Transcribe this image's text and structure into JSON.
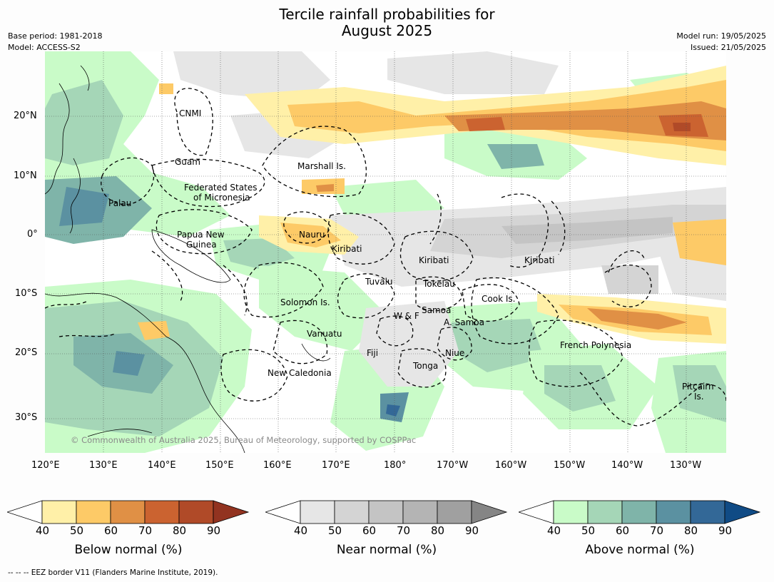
{
  "title": {
    "line1": "Tercile rainfall probabilities for",
    "line2": "August 2025"
  },
  "meta": {
    "base_period": "Base period: 1981-2018",
    "model": "Model: ACCESS-S2",
    "model_run": "Model run: 19/05/2025",
    "issued": "Issued: 21/05/2025"
  },
  "axes": {
    "lon_ticks": [
      "120°E",
      "130°E",
      "140°E",
      "150°E",
      "160°E",
      "170°E",
      "180°",
      "170°W",
      "160°W",
      "150°W",
      "140°W",
      "130°W"
    ],
    "lat_ticks": [
      "20°N",
      "10°N",
      "0°",
      "10°S",
      "20°S",
      "30°S"
    ]
  },
  "places": {
    "cnmi": "CNMI",
    "guam": "Guam",
    "marshall": "Marshall Is.",
    "micronesia_1": "Federated States",
    "micronesia_2": "of Micronesia",
    "palau": "Palau",
    "png_1": "Papua New",
    "png_2": "Guinea",
    "nauru": "Nauru",
    "kiribati_w": "Kiribati",
    "kiribati_c": "Kiribati",
    "kiribati_e": "Kiribati",
    "tuvalu": "Tuvalu",
    "tokelau": "Tokelau",
    "cook": "Cook Is.",
    "solomon": "Solomon Is.",
    "samoa": "Samoa",
    "wf": "W & F",
    "asamoa": "A. Samoa",
    "vanuatu": "Vanuatu",
    "fiji": "Fiji",
    "niue": "Niue",
    "tonga": "Tonga",
    "newcal": "New Caledonia",
    "frenchpoly": "French Polynesia",
    "pitcairn_1": "Pitcairn",
    "pitcairn_2": "Is."
  },
  "copyright": "© Commonwealth of Australia 2025, Bureau of Meteorology, supported by COSPPac",
  "colorbars": [
    {
      "name": "Below normal (%)",
      "ticks": [
        "40",
        "50",
        "60",
        "70",
        "80",
        "90"
      ],
      "colors": [
        "#fff0a8",
        "#fdca67",
        "#e09045",
        "#cb6330",
        "#b04a28",
        "#923320"
      ]
    },
    {
      "name": "Near normal (%)",
      "ticks": [
        "40",
        "50",
        "60",
        "70",
        "80",
        "90"
      ],
      "colors": [
        "#e6e6e6",
        "#d4d4d4",
        "#c4c4c4",
        "#b4b4b4",
        "#a0a0a0",
        "#858585"
      ]
    },
    {
      "name": "Above normal (%)",
      "ticks": [
        "40",
        "50",
        "60",
        "70",
        "80",
        "90"
      ],
      "colors": [
        "#c9fbc8",
        "#a5d6b7",
        "#7fb4a9",
        "#5b91a1",
        "#336897",
        "#104b85"
      ]
    }
  ],
  "footer": "--  --  -- EEZ border V11 (Flanders Marine Institute, 2019)."
}
